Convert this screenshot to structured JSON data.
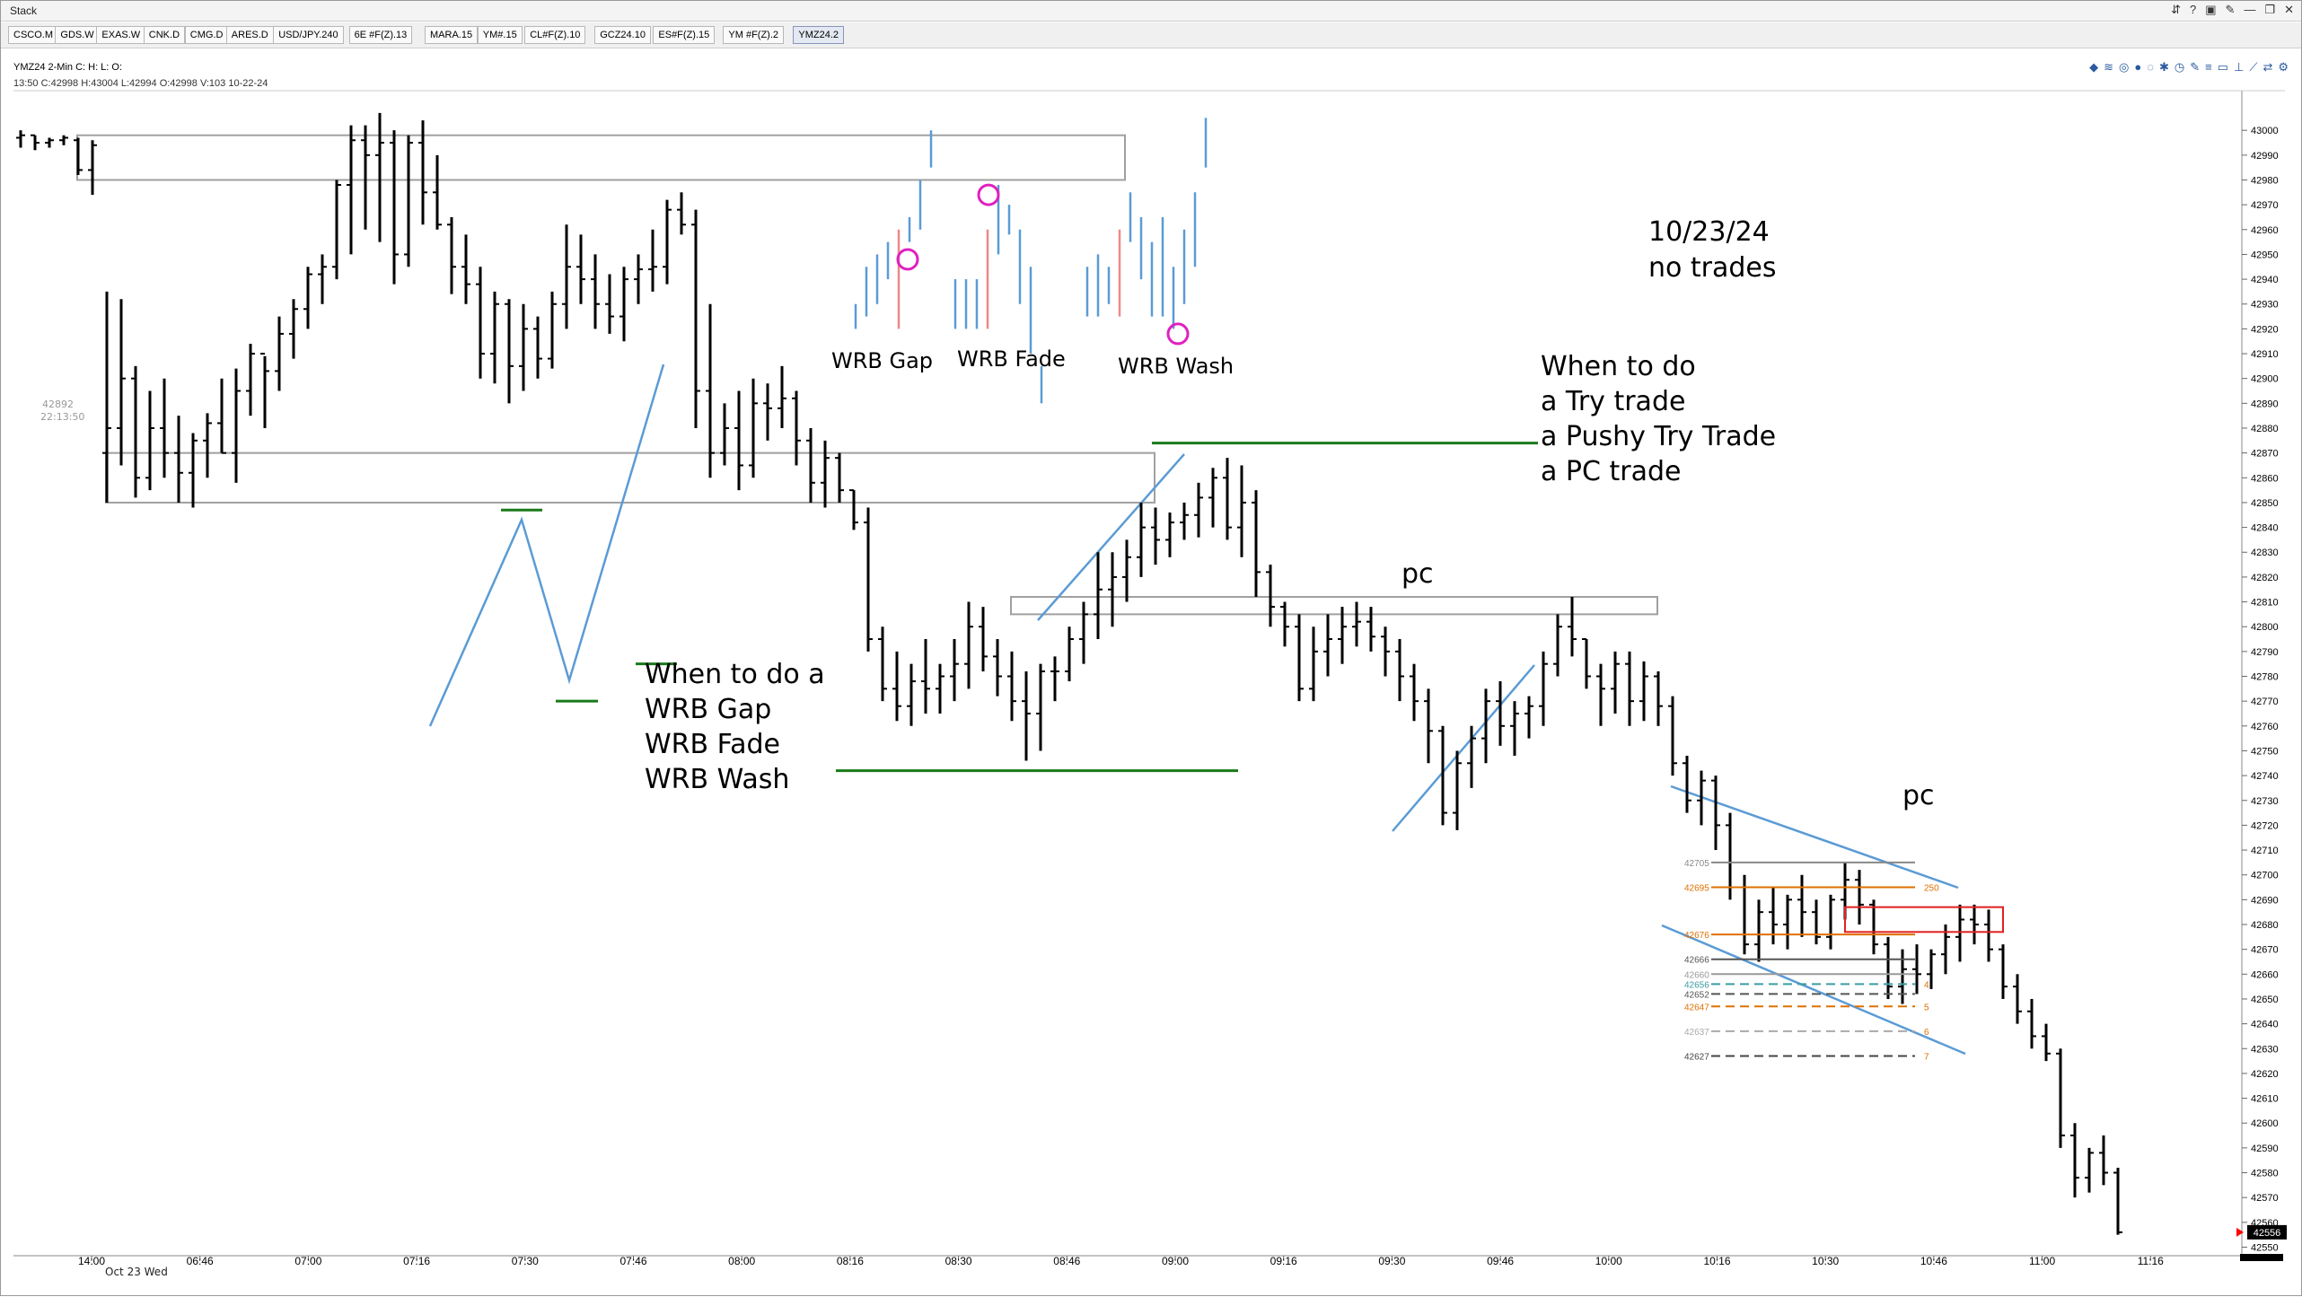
{
  "window": {
    "title": "Stack"
  },
  "window_controls": [
    "⇵",
    "?",
    "▣",
    "✎",
    "—",
    "❐",
    "✕"
  ],
  "tabs": [
    "CSCO.M",
    "GDS.W",
    "EXAS.W",
    "CNK.D",
    "CMG.D",
    "ARES.D",
    "USD/JPY.240",
    "6E #F(Z).13",
    "MARA.15",
    "YM#.15",
    "CL#F(Z).10",
    "GCZ24.10",
    "ES#F(Z).15",
    "YM #F(Z).2",
    "YMZ24.2"
  ],
  "chart_header": "YMZ24 2-Min C: H: L: O:",
  "chart_info": "13:50 C:42998 H:43004 L:42994 O:42998 V:103 10-22-24",
  "toolbar_icons": [
    "chart-icon",
    "layers-icon",
    "target-icon",
    "circle-icon",
    "ring-icon",
    "gear-icon",
    "clock-icon",
    "draw-icon",
    "lines-icon",
    "box-icon",
    "ruler-icon",
    "trend-icon",
    "scale-icon",
    "settings-icon"
  ],
  "annotations": {
    "date_note": "10/23/24\nno trades",
    "when_try": "When to do\na Try trade\na Pushy Try Trade\na PC trade",
    "when_wrb": "When to do a\nWRB Gap\nWRB Fade\nWRB Wash",
    "pc1": "pc",
    "pc2": "pc",
    "wrb_gap": "WRB Gap",
    "wrb_fade": "WRB Fade",
    "wrb_wash": "WRB Wash",
    "left_price": "42892",
    "left_time": "22:13:50"
  },
  "level_labels": [
    "42705",
    "42695",
    "42676",
    "42666",
    "42660",
    "42656",
    "42652",
    "42647",
    "42637",
    "42627"
  ],
  "level_tags": [
    "250",
    "4",
    "5",
    "6",
    "7"
  ],
  "date_label": "Oct 23 Wed",
  "colors": {
    "bars": "#000000",
    "trendline": "#5b9bd5",
    "level_green": "#1a7a1a",
    "box": "#a0a0a0",
    "circle": "#e020c0",
    "orange": "#e07000",
    "red_box": "#e02020",
    "price_marker": "#ff0000"
  },
  "chart_data": {
    "type": "bar",
    "subtype": "ohlc",
    "symbol": "YMZ24",
    "interval": "2-Min",
    "ylim": [
      42548,
      43012
    ],
    "yticks": [
      43000,
      42990,
      42980,
      42970,
      42960,
      42950,
      42940,
      42930,
      42920,
      42910,
      42900,
      42890,
      42880,
      42870,
      42860,
      42850,
      42840,
      42830,
      42820,
      42810,
      42800,
      42790,
      42780,
      42770,
      42760,
      42750,
      42740,
      42730,
      42720,
      42710,
      42700,
      42690,
      42680,
      42670,
      42660,
      42650,
      42640,
      42630,
      42620,
      42610,
      42600,
      42590,
      42580,
      42570,
      42560,
      42550
    ],
    "last_price": 42556,
    "xticks": [
      "14:00",
      "06:46",
      "07:00",
      "07:16",
      "07:30",
      "07:46",
      "08:00",
      "08:16",
      "08:30",
      "08:46",
      "09:00",
      "09:16",
      "09:30",
      "09:46",
      "10:00",
      "10:16",
      "10:30",
      "10:46",
      "11:00",
      "11:16"
    ],
    "bars": [
      [
        42997,
        43000,
        42993,
        42998
      ],
      [
        42998,
        42998,
        42992,
        42995
      ],
      [
        42995,
        42997,
        42993,
        42996
      ],
      [
        42996,
        42998,
        42994,
        42997
      ],
      [
        42996,
        42997,
        42982,
        42984
      ],
      [
        42984,
        42996,
        42974,
        42994
      ],
      [
        42870,
        42935,
        42850,
        42880
      ],
      [
        42880,
        42932,
        42865,
        42900
      ],
      [
        42900,
        42905,
        42852,
        42860
      ],
      [
        42860,
        42895,
        42855,
        42880
      ],
      [
        42880,
        42900,
        42860,
        42870
      ],
      [
        42870,
        42885,
        42850,
        42862
      ],
      [
        42862,
        42878,
        42848,
        42875
      ],
      [
        42875,
        42886,
        42860,
        42882
      ],
      [
        42882,
        42900,
        42870,
        42870
      ],
      [
        42870,
        42904,
        42858,
        42895
      ],
      [
        42895,
        42914,
        42885,
        42910
      ],
      [
        42910,
        42909,
        42880,
        42903
      ],
      [
        42903,
        42925,
        42895,
        42918
      ],
      [
        42918,
        42932,
        42908,
        42928
      ],
      [
        42928,
        42945,
        42920,
        42942
      ],
      [
        42942,
        42950,
        42930,
        42945
      ],
      [
        42945,
        42980,
        42940,
        42978
      ],
      [
        42978,
        43002,
        42950,
        42996
      ],
      [
        42996,
        43002,
        42960,
        42990
      ],
      [
        42990,
        43007,
        42955,
        42995
      ],
      [
        42995,
        43000,
        42938,
        42950
      ],
      [
        42950,
        42998,
        42945,
        42995
      ],
      [
        42995,
        43004,
        42962,
        42975
      ],
      [
        42975,
        42990,
        42960,
        42962
      ],
      [
        42962,
        42965,
        42934,
        42945
      ],
      [
        42945,
        42958,
        42930,
        42938
      ],
      [
        42938,
        42945,
        42900,
        42910
      ],
      [
        42910,
        42935,
        42898,
        42930
      ],
      [
        42930,
        42932,
        42890,
        42905
      ],
      [
        42905,
        42930,
        42895,
        42920
      ],
      [
        42920,
        42925,
        42900,
        42908
      ],
      [
        42908,
        42935,
        42904,
        42930
      ],
      [
        42930,
        42962,
        42920,
        42945
      ],
      [
        42945,
        42958,
        42930,
        42940
      ],
      [
        42940,
        42950,
        42920,
        42930
      ],
      [
        42930,
        42942,
        42918,
        42925
      ],
      [
        42925,
        42945,
        42915,
        42940
      ],
      [
        42940,
        42950,
        42930,
        42944
      ],
      [
        42944,
        42960,
        42935,
        42945
      ],
      [
        42945,
        42972,
        42938,
        42968
      ],
      [
        42968,
        42975,
        42958,
        42962
      ],
      [
        42962,
        42968,
        42880,
        42895
      ],
      [
        42895,
        42930,
        42860,
        42870
      ],
      [
        42870,
        42890,
        42865,
        42880
      ],
      [
        42880,
        42895,
        42855,
        42865
      ],
      [
        42865,
        42900,
        42860,
        42890
      ],
      [
        42890,
        42898,
        42875,
        42888
      ],
      [
        42888,
        42905,
        42880,
        42892
      ],
      [
        42892,
        42895,
        42865,
        42875
      ],
      [
        42875,
        42880,
        42850,
        42858
      ],
      [
        42858,
        42875,
        42848,
        42868
      ],
      [
        42868,
        42870,
        42850,
        42855
      ],
      [
        42855,
        42855,
        42839,
        42842
      ],
      [
        42842,
        42848,
        42790,
        42795
      ],
      [
        42795,
        42800,
        42770,
        42775
      ],
      [
        42775,
        42790,
        42762,
        42768
      ],
      [
        42768,
        42785,
        42760,
        42778
      ],
      [
        42778,
        42795,
        42765,
        42775
      ],
      [
        42775,
        42785,
        42765,
        42780
      ],
      [
        42780,
        42795,
        42770,
        42785
      ],
      [
        42785,
        42810,
        42775,
        42800
      ],
      [
        42800,
        42808,
        42782,
        42788
      ],
      [
        42788,
        42795,
        42772,
        42780
      ],
      [
        42780,
        42790,
        42762,
        42770
      ],
      [
        42770,
        42782,
        42746,
        42765
      ],
      [
        42765,
        42785,
        42750,
        42782
      ],
      [
        42782,
        42788,
        42770,
        42782
      ],
      [
        42782,
        42800,
        42778,
        42795
      ],
      [
        42795,
        42810,
        42785,
        42805
      ],
      [
        42805,
        42830,
        42795,
        42815
      ],
      [
        42815,
        42830,
        42800,
        42820
      ],
      [
        42820,
        42835,
        42810,
        42828
      ],
      [
        42828,
        42850,
        42820,
        42840
      ],
      [
        42840,
        42848,
        42825,
        42835
      ],
      [
        42835,
        42846,
        42828,
        42842
      ],
      [
        42842,
        42850,
        42835,
        42845
      ],
      [
        42845,
        42858,
        42836,
        42852
      ],
      [
        42852,
        42864,
        42840,
        42860
      ],
      [
        42860,
        42868,
        42835,
        42840
      ],
      [
        42840,
        42865,
        42828,
        42850
      ],
      [
        42850,
        42855,
        42812,
        42822
      ],
      [
        42822,
        42825,
        42800,
        42808
      ],
      [
        42808,
        42810,
        42792,
        42800
      ],
      [
        42800,
        42805,
        42770,
        42775
      ],
      [
        42775,
        42800,
        42770,
        42790
      ],
      [
        42790,
        42805,
        42780,
        42795
      ],
      [
        42795,
        42808,
        42785,
        42800
      ],
      [
        42800,
        42810,
        42792,
        42802
      ],
      [
        42802,
        42808,
        42790,
        42796
      ],
      [
        42796,
        42800,
        42780,
        42790
      ],
      [
        42790,
        42795,
        42770,
        42780
      ],
      [
        42780,
        42785,
        42762,
        42770
      ],
      [
        42770,
        42775,
        42745,
        42758
      ],
      [
        42758,
        42760,
        42720,
        42725
      ],
      [
        42725,
        42750,
        42718,
        42745
      ],
      [
        42745,
        42760,
        42735,
        42755
      ],
      [
        42755,
        42775,
        42745,
        42770
      ],
      [
        42770,
        42778,
        42752,
        42760
      ],
      [
        42760,
        42770,
        42748,
        42765
      ],
      [
        42765,
        42772,
        42755,
        42768
      ],
      [
        42768,
        42790,
        42760,
        42785
      ],
      [
        42785,
        42805,
        42780,
        42800
      ],
      [
        42800,
        42812,
        42788,
        42795
      ],
      [
        42795,
        42795,
        42775,
        42780
      ],
      [
        42780,
        42785,
        42760,
        42775
      ],
      [
        42775,
        42790,
        42765,
        42785
      ],
      [
        42785,
        42790,
        42760,
        42770
      ],
      [
        42770,
        42786,
        42762,
        42780
      ],
      [
        42780,
        42782,
        42760,
        42768
      ],
      [
        42768,
        42772,
        42740,
        42745
      ],
      [
        42745,
        42748,
        42725,
        42730
      ],
      [
        42730,
        42742,
        42720,
        42738
      ],
      [
        42738,
        42740,
        42710,
        42720
      ],
      [
        42720,
        42725,
        42690,
        42695
      ],
      [
        42695,
        42700,
        42668,
        42672
      ],
      [
        42672,
        42690,
        42665,
        42685
      ],
      [
        42685,
        42695,
        42672,
        42680
      ],
      [
        42680,
        42692,
        42670,
        42690
      ],
      [
        42690,
        42700,
        42675,
        42685
      ],
      [
        42685,
        42690,
        42672,
        42675
      ],
      [
        42675,
        42692,
        42670,
        42690
      ],
      [
        42690,
        42705,
        42682,
        42698
      ],
      [
        42698,
        42702,
        42680,
        42688
      ],
      [
        42688,
        42690,
        42668,
        42672
      ],
      [
        42672,
        42675,
        42650,
        42655
      ],
      [
        42655,
        42670,
        42648,
        42662
      ],
      [
        42662,
        42672,
        42652,
        42660
      ],
      [
        42660,
        42670,
        42654,
        42668
      ],
      [
        42668,
        42680,
        42660,
        42675
      ],
      [
        42675,
        42688,
        42665,
        42682
      ],
      [
        42682,
        42688,
        42672,
        42680
      ],
      [
        42680,
        42686,
        42665,
        42670
      ],
      [
        42670,
        42672,
        42650,
        42655
      ],
      [
        42655,
        42660,
        42640,
        42645
      ],
      [
        42645,
        42650,
        42630,
        42635
      ],
      [
        42635,
        42640,
        42625,
        42628
      ],
      [
        42628,
        42630,
        42590,
        42595
      ],
      [
        42595,
        42600,
        42570,
        42578
      ],
      [
        42578,
        42590,
        42572,
        42588
      ],
      [
        42588,
        42595,
        42575,
        42580
      ],
      [
        42580,
        42582,
        42555,
        42556
      ]
    ],
    "mini_bars": [
      {
        "group": "WRB Gap",
        "bars": [
          [
            42930,
            42920,
            "blue"
          ],
          [
            42945,
            42925,
            "blue"
          ],
          [
            42950,
            42930,
            "blue"
          ],
          [
            42955,
            42940,
            "blue"
          ],
          [
            42960,
            42920,
            "red"
          ],
          [
            42965,
            42955,
            "blue"
          ],
          [
            42980,
            42960,
            "blue"
          ],
          [
            43000,
            42985,
            "blue"
          ]
        ]
      },
      {
        "group": "WRB Fade",
        "bars": [
          [
            42940,
            42920,
            "blue"
          ],
          [
            42940,
            42920,
            "blue"
          ],
          [
            42940,
            42920,
            "blue"
          ],
          [
            42960,
            42920,
            "red"
          ],
          [
            42978,
            42950,
            "blue"
          ],
          [
            42970,
            42958,
            "blue"
          ],
          [
            42960,
            42930,
            "blue"
          ],
          [
            42945,
            42910,
            "blue"
          ],
          [
            42905,
            42890,
            "blue"
          ]
        ]
      },
      {
        "group": "WRB Wash",
        "bars": [
          [
            42945,
            42925,
            "blue"
          ],
          [
            42950,
            42925,
            "blue"
          ],
          [
            42945,
            42930,
            "blue"
          ],
          [
            42960,
            42925,
            "red"
          ],
          [
            42975,
            42955,
            "blue"
          ],
          [
            42965,
            42940,
            "blue"
          ],
          [
            42955,
            42925,
            "blue"
          ],
          [
            42965,
            42925,
            "blue"
          ],
          [
            42945,
            42920,
            "blue"
          ],
          [
            42960,
            42930,
            "blue"
          ],
          [
            42975,
            42945,
            "blue"
          ],
          [
            43005,
            42985,
            "blue"
          ]
        ]
      }
    ],
    "zones": [
      {
        "from": 42998,
        "to": 42980,
        "type": "box"
      },
      {
        "from": 42870,
        "to": 42850,
        "type": "box"
      },
      {
        "from": 42812,
        "to": 42805,
        "type": "box"
      }
    ],
    "green_levels": [
      42874,
      42847,
      42785,
      42770,
      42742
    ]
  }
}
